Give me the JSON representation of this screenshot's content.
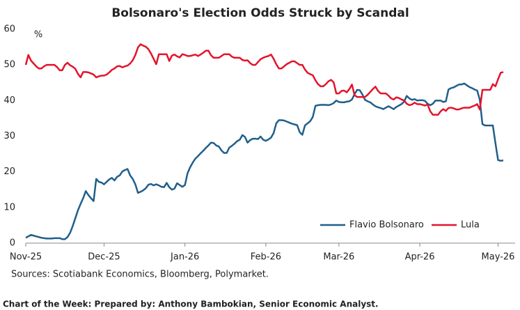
{
  "chart_data": {
    "type": "line",
    "title": "Bolsonaro's Election Odds Struck by Scandal",
    "ylabel": "%",
    "source": "Sources: Scotiabank Economics, Bloomberg, Polymarket.",
    "footer": "Chart of the Week:  Prepared by: Anthony Bambokian, Senior Economic Analyst.",
    "ylim": [
      0,
      60
    ],
    "yticks": [
      0,
      10,
      20,
      30,
      40,
      50,
      60
    ],
    "grid": false,
    "legend": "lower right",
    "categories": [
      "Nov-25",
      null,
      null,
      null,
      null,
      null,
      null,
      null,
      null,
      null,
      null,
      null,
      null,
      null,
      null,
      null,
      null,
      null,
      null,
      null,
      null,
      null,
      null,
      null,
      null,
      null,
      null,
      null,
      null,
      null,
      "Dec-25",
      null,
      null,
      null,
      null,
      null,
      null,
      null,
      null,
      null,
      null,
      null,
      null,
      null,
      null,
      null,
      null,
      null,
      null,
      null,
      null,
      null,
      null,
      null,
      null,
      null,
      null,
      null,
      null,
      null,
      null,
      "Jan-26",
      null,
      null,
      null,
      null,
      null,
      null,
      null,
      null,
      null,
      null,
      null,
      null,
      null,
      null,
      null,
      null,
      null,
      null,
      null,
      null,
      null,
      null,
      null,
      null,
      null,
      null,
      null,
      null,
      null,
      null,
      "Feb-26",
      null,
      null,
      null,
      null,
      null,
      null,
      null,
      null,
      null,
      null,
      null,
      null,
      null,
      null,
      null,
      null,
      null,
      null,
      null,
      null,
      null,
      null,
      null,
      null,
      null,
      null,
      null,
      "Mar-26",
      null,
      null,
      null,
      null,
      null,
      null,
      null,
      null,
      null,
      null,
      null,
      null,
      null,
      null,
      null,
      null,
      null,
      null,
      null,
      null,
      null,
      null,
      null,
      null,
      null,
      null,
      null,
      null,
      null,
      null,
      "Apr-26",
      null,
      null,
      null,
      null,
      null,
      null,
      null,
      null,
      null,
      null,
      null,
      null,
      null,
      null,
      null,
      null,
      null,
      null,
      null,
      null,
      null,
      null,
      null,
      null,
      null,
      null,
      null,
      null,
      null,
      "May-26",
      null,
      null
    ],
    "series": [
      {
        "name": "Flavio Bolsonaro",
        "color": "#1f5f8b",
        "values": [
          1.5,
          1.9,
          2.3,
          2.1,
          1.9,
          1.7,
          1.5,
          1.4,
          1.3,
          1.3,
          1.3,
          1.4,
          1.4,
          1.4,
          1.1,
          1.1,
          1.7,
          2.9,
          4.8,
          7,
          9.2,
          11,
          12.6,
          14.6,
          13.5,
          12.6,
          11.8,
          18,
          17.2,
          17,
          16.5,
          17.2,
          17.9,
          18.3,
          17.6,
          18.6,
          19,
          20.1,
          20.5,
          20.8,
          19,
          18,
          16.5,
          14.1,
          14.4,
          14.8,
          15.4,
          16.4,
          16.6,
          16.2,
          16.5,
          16.2,
          15.8,
          15.7,
          16.9,
          15.7,
          15,
          15.3,
          16.8,
          16.3,
          15.8,
          16.3,
          19.6,
          21.3,
          22.6,
          23.7,
          24.4,
          25.2,
          25.9,
          26.7,
          27.4,
          28.2,
          28.1,
          27.4,
          27.1,
          26,
          25.3,
          25.3,
          26.8,
          27.3,
          27.9,
          28.6,
          29,
          30.3,
          29.8,
          28.2,
          28.9,
          29.3,
          29.3,
          29.2,
          29.9,
          29,
          28.7,
          29.1,
          29.6,
          30.9,
          33.6,
          34.5,
          34.5,
          34.4,
          34.1,
          33.8,
          33.5,
          33.3,
          33.1,
          31.1,
          30.4,
          33,
          33.6,
          34.2,
          35.4,
          38.5,
          38.7,
          38.8,
          38.8,
          38.8,
          38.7,
          38.9,
          39.3,
          40,
          39.6,
          39.5,
          39.5,
          39.7,
          39.8,
          40.3,
          41.8,
          43,
          42.9,
          41.7,
          40.2,
          39.8,
          39.5,
          38.9,
          38.4,
          38.1,
          37.9,
          37.6,
          38,
          38.4,
          38,
          37.6,
          38.2,
          38.6,
          39,
          39.7,
          41.3,
          40.6,
          40.2,
          40.4,
          40,
          40.1,
          40.1,
          39.9,
          39.1,
          38.7,
          39.1,
          40,
          40,
          40,
          39.6,
          39.8,
          43.1,
          43.5,
          43.7,
          44.1,
          44.5,
          44.5,
          44.8,
          44.3,
          43.8,
          43.5,
          43.1,
          42.8,
          40.2,
          33.4,
          33,
          33,
          33,
          33,
          28,
          23.3,
          23.1,
          23.2
        ]
      },
      {
        "name": "Lula",
        "color": "#e3132b",
        "values": [
          50,
          52.8,
          51.2,
          50.4,
          49.6,
          49,
          49,
          49.6,
          50,
          50,
          50,
          50,
          49.4,
          48.5,
          48.5,
          50,
          50.6,
          49.9,
          49.5,
          48.9,
          47.5,
          46.5,
          48,
          48,
          47.9,
          47.6,
          47.3,
          46.5,
          46.8,
          47,
          47,
          47.3,
          47.9,
          48.6,
          49,
          49.6,
          49.7,
          49.3,
          49.6,
          49.8,
          50.4,
          51.3,
          52.8,
          54.9,
          55.8,
          55.4,
          55.1,
          54.4,
          53.2,
          51.7,
          50.2,
          53,
          53,
          53,
          53,
          51.1,
          52.6,
          52.9,
          52.4,
          52.1,
          53,
          52.8,
          52.5,
          52.5,
          52.7,
          52.9,
          52.5,
          52.9,
          53.4,
          54,
          54,
          52.7,
          52,
          52,
          52,
          52.5,
          53,
          53,
          53,
          52.3,
          52,
          52,
          52,
          51.4,
          51.2,
          51.3,
          50.5,
          50,
          50,
          50.8,
          51.6,
          52,
          52.3,
          52.5,
          52.9,
          51.7,
          50.2,
          49,
          49,
          49.6,
          50.2,
          50.6,
          51,
          51,
          50.5,
          50,
          50,
          48.7,
          47.8,
          47.4,
          47.1,
          45.7,
          44.6,
          44,
          44,
          44.6,
          45.4,
          45.8,
          45.1,
          42,
          42,
          42.7,
          42.8,
          42.3,
          43.2,
          44.5,
          41.5,
          41,
          41,
          41,
          41,
          41.6,
          42.4,
          43.2,
          43.9,
          42.7,
          42,
          42,
          42,
          41.4,
          40.6,
          40.3,
          40.9,
          40.7,
          40.3,
          40,
          39.1,
          38.7,
          38.9,
          39.4,
          39,
          39,
          38.8,
          38.6,
          38.9,
          37,
          36,
          36,
          36,
          37,
          37.6,
          37.1,
          37.9,
          38,
          37.8,
          37.5,
          37.5,
          37.8,
          38,
          38,
          38,
          38.3,
          38.6,
          39,
          37.5,
          43,
          43,
          43,
          43,
          44.6,
          44,
          46,
          47.8,
          48
        ]
      }
    ]
  }
}
